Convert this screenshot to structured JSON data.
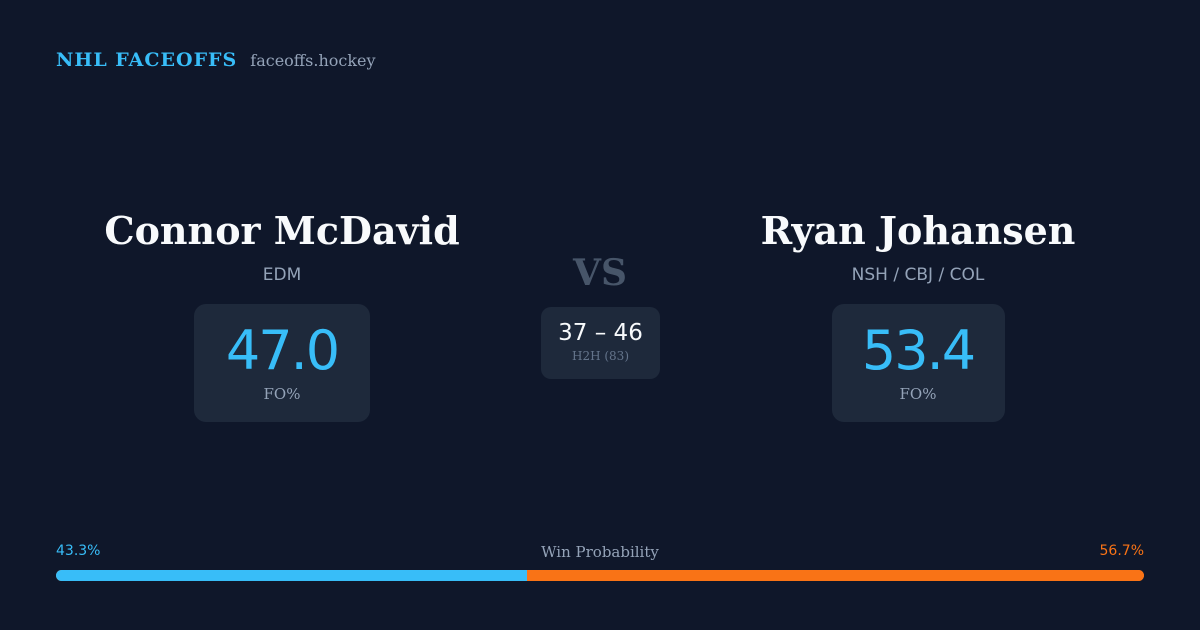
{
  "brand": {
    "name": "NHL FACEOFFS",
    "domain": "faceoffs.hockey"
  },
  "player_left": {
    "name": "Connor McDavid",
    "team": "EDM",
    "fo_value": "47.0",
    "fo_label": "FO%"
  },
  "player_right": {
    "name": "Ryan Johansen",
    "team": "NSH / CBJ / COL",
    "fo_value": "53.4",
    "fo_label": "FO%"
  },
  "vs_label": "VS",
  "h2h": {
    "score": "37 – 46",
    "label": "H2H (83)"
  },
  "win_probability": {
    "title": "Win Probability",
    "left_label": "43.3%",
    "right_label": "56.7%",
    "left_fraction": 0.433,
    "right_fraction": 0.567,
    "left_color": "#38bdf8",
    "right_color": "#f97316"
  }
}
